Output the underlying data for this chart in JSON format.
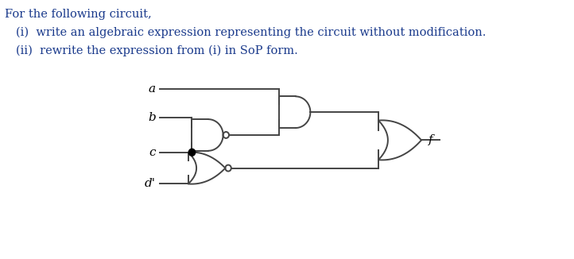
{
  "title_text": "For the following circuit,",
  "line1": "(i)  write an algebraic expression representing the circuit without modification.",
  "line2": "(ii)  rewrite the expression from (i) in SoP form.",
  "bg_color": "#ffffff",
  "text_color": "#1a3a8c",
  "gate_color": "#444444",
  "wire_color": "#444444",
  "dot_color": "#000000",
  "fig_w": 7.22,
  "fig_h": 3.26,
  "dpi": 100
}
